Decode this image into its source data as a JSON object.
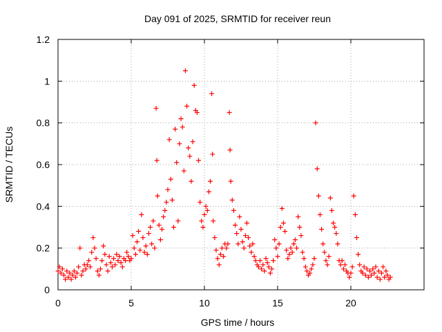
{
  "chart_data": {
    "type": "scatter",
    "title": "Day 091 of 2025, SRMTID for receiver reun",
    "xlabel": "GPS time / hours",
    "ylabel": "SRMTID / TECUs",
    "xlim": [
      0,
      25
    ],
    "ylim": [
      0,
      1.2
    ],
    "xticks": [
      0,
      5,
      10,
      15,
      20
    ],
    "xtick_labels": [
      "0",
      "5",
      "10",
      "15",
      "20"
    ],
    "yticks": [
      0,
      0.2,
      0.4,
      0.6,
      0.8,
      1.0,
      1.2
    ],
    "ytick_labels": [
      "0",
      "0.2",
      "0.4",
      "0.6",
      "0.8",
      "1",
      "1.2"
    ],
    "grid": true,
    "marker": "+",
    "series": [
      {
        "name": "SRMTID",
        "color": "#ff0000",
        "points": [
          [
            0.0,
            0.09
          ],
          [
            0.1,
            0.11
          ],
          [
            0.2,
            0.08
          ],
          [
            0.3,
            0.1
          ],
          [
            0.4,
            0.07
          ],
          [
            0.5,
            0.05
          ],
          [
            0.6,
            0.09
          ],
          [
            0.7,
            0.06
          ],
          [
            0.8,
            0.08
          ],
          [
            0.9,
            0.05
          ],
          [
            1.0,
            0.07
          ],
          [
            1.1,
            0.09
          ],
          [
            1.2,
            0.06
          ],
          [
            1.3,
            0.08
          ],
          [
            1.4,
            0.11
          ],
          [
            1.5,
            0.2
          ],
          [
            1.6,
            0.07
          ],
          [
            1.7,
            0.09
          ],
          [
            1.8,
            0.12
          ],
          [
            1.9,
            0.1
          ],
          [
            2.0,
            0.12
          ],
          [
            2.1,
            0.14
          ],
          [
            2.2,
            0.11
          ],
          [
            2.3,
            0.18
          ],
          [
            2.4,
            0.25
          ],
          [
            2.5,
            0.2
          ],
          [
            2.6,
            0.15
          ],
          [
            2.7,
            0.09
          ],
          [
            2.8,
            0.07
          ],
          [
            2.9,
            0.1
          ],
          [
            3.0,
            0.14
          ],
          [
            3.1,
            0.21
          ],
          [
            3.2,
            0.17
          ],
          [
            3.3,
            0.12
          ],
          [
            3.4,
            0.09
          ],
          [
            3.5,
            0.16
          ],
          [
            3.6,
            0.13
          ],
          [
            3.7,
            0.11
          ],
          [
            3.8,
            0.15
          ],
          [
            3.9,
            0.12
          ],
          [
            4.0,
            0.17
          ],
          [
            4.1,
            0.14
          ],
          [
            4.2,
            0.16
          ],
          [
            4.3,
            0.13
          ],
          [
            4.4,
            0.11
          ],
          [
            4.5,
            0.15
          ],
          [
            4.6,
            0.14
          ],
          [
            4.7,
            0.18
          ],
          [
            4.8,
            0.16
          ],
          [
            4.9,
            0.14
          ],
          [
            5.0,
            0.15
          ],
          [
            5.1,
            0.26
          ],
          [
            5.2,
            0.2
          ],
          [
            5.3,
            0.17
          ],
          [
            5.4,
            0.23
          ],
          [
            5.5,
            0.28
          ],
          [
            5.6,
            0.19
          ],
          [
            5.7,
            0.36
          ],
          [
            5.8,
            0.25
          ],
          [
            5.9,
            0.18
          ],
          [
            6.0,
            0.21
          ],
          [
            6.1,
            0.17
          ],
          [
            6.2,
            0.27
          ],
          [
            6.3,
            0.3
          ],
          [
            6.4,
            0.22
          ],
          [
            6.5,
            0.33
          ],
          [
            6.6,
            0.2
          ],
          [
            6.7,
            0.87
          ],
          [
            6.75,
            0.62
          ],
          [
            6.8,
            0.45
          ],
          [
            6.9,
            0.31
          ],
          [
            7.0,
            0.24
          ],
          [
            7.1,
            0.29
          ],
          [
            7.2,
            0.35
          ],
          [
            7.3,
            0.38
          ],
          [
            7.4,
            0.42
          ],
          [
            7.5,
            0.48
          ],
          [
            7.6,
            0.72
          ],
          [
            7.7,
            0.53
          ],
          [
            7.8,
            0.43
          ],
          [
            7.9,
            0.3
          ],
          [
            8.0,
            0.77
          ],
          [
            8.1,
            0.61
          ],
          [
            8.2,
            0.33
          ],
          [
            8.3,
            0.7
          ],
          [
            8.4,
            0.82
          ],
          [
            8.5,
            0.78
          ],
          [
            8.6,
            0.57
          ],
          [
            8.7,
            1.05
          ],
          [
            8.8,
            0.88
          ],
          [
            8.9,
            0.68
          ],
          [
            9.0,
            0.64
          ],
          [
            9.1,
            0.52
          ],
          [
            9.2,
            0.71
          ],
          [
            9.3,
            0.98
          ],
          [
            9.4,
            0.86
          ],
          [
            9.5,
            0.85
          ],
          [
            9.6,
            0.62
          ],
          [
            9.7,
            0.42
          ],
          [
            9.8,
            0.33
          ],
          [
            9.9,
            0.3
          ],
          [
            10.0,
            0.36
          ],
          [
            10.1,
            0.4
          ],
          [
            10.2,
            0.38
          ],
          [
            10.3,
            0.47
          ],
          [
            10.4,
            0.52
          ],
          [
            10.5,
            0.94
          ],
          [
            10.55,
            0.65
          ],
          [
            10.6,
            0.33
          ],
          [
            10.7,
            0.25
          ],
          [
            10.8,
            0.19
          ],
          [
            10.9,
            0.15
          ],
          [
            11.0,
            0.12
          ],
          [
            11.1,
            0.17
          ],
          [
            11.2,
            0.2
          ],
          [
            11.3,
            0.16
          ],
          [
            11.4,
            0.22
          ],
          [
            11.5,
            0.2
          ],
          [
            11.6,
            0.22
          ],
          [
            11.7,
            0.85
          ],
          [
            11.75,
            0.67
          ],
          [
            11.8,
            0.52
          ],
          [
            11.9,
            0.43
          ],
          [
            12.0,
            0.38
          ],
          [
            12.1,
            0.31
          ],
          [
            12.2,
            0.27
          ],
          [
            12.3,
            0.22
          ],
          [
            12.4,
            0.35
          ],
          [
            12.5,
            0.29
          ],
          [
            12.6,
            0.23
          ],
          [
            12.7,
            0.2
          ],
          [
            12.8,
            0.26
          ],
          [
            12.9,
            0.32
          ],
          [
            13.0,
            0.25
          ],
          [
            13.1,
            0.21
          ],
          [
            13.2,
            0.18
          ],
          [
            13.3,
            0.22
          ],
          [
            13.4,
            0.16
          ],
          [
            13.5,
            0.14
          ],
          [
            13.6,
            0.12
          ],
          [
            13.7,
            0.11
          ],
          [
            13.8,
            0.14
          ],
          [
            13.9,
            0.1
          ],
          [
            14.0,
            0.12
          ],
          [
            14.1,
            0.09
          ],
          [
            14.2,
            0.15
          ],
          [
            14.3,
            0.13
          ],
          [
            14.4,
            0.11
          ],
          [
            14.5,
            0.08
          ],
          [
            14.6,
            0.1
          ],
          [
            14.7,
            0.14
          ],
          [
            14.8,
            0.24
          ],
          [
            14.9,
            0.2
          ],
          [
            15.0,
            0.16
          ],
          [
            15.1,
            0.22
          ],
          [
            15.2,
            0.3
          ],
          [
            15.3,
            0.39
          ],
          [
            15.4,
            0.32
          ],
          [
            15.5,
            0.28
          ],
          [
            15.6,
            0.19
          ],
          [
            15.7,
            0.15
          ],
          [
            15.8,
            0.17
          ],
          [
            15.9,
            0.2
          ],
          [
            16.0,
            0.18
          ],
          [
            16.1,
            0.22
          ],
          [
            16.2,
            0.24
          ],
          [
            16.3,
            0.2
          ],
          [
            16.4,
            0.35
          ],
          [
            16.5,
            0.3
          ],
          [
            16.6,
            0.26
          ],
          [
            16.7,
            0.18
          ],
          [
            16.8,
            0.15
          ],
          [
            16.9,
            0.11
          ],
          [
            17.0,
            0.09
          ],
          [
            17.1,
            0.07
          ],
          [
            17.2,
            0.08
          ],
          [
            17.3,
            0.1
          ],
          [
            17.4,
            0.12
          ],
          [
            17.5,
            0.15
          ],
          [
            17.6,
            0.8
          ],
          [
            17.7,
            0.58
          ],
          [
            17.8,
            0.45
          ],
          [
            17.9,
            0.36
          ],
          [
            18.0,
            0.29
          ],
          [
            18.1,
            0.22
          ],
          [
            18.2,
            0.18
          ],
          [
            18.3,
            0.14
          ],
          [
            18.4,
            0.12
          ],
          [
            18.5,
            0.16
          ],
          [
            18.6,
            0.44
          ],
          [
            18.7,
            0.38
          ],
          [
            18.8,
            0.32
          ],
          [
            18.9,
            0.3
          ],
          [
            19.0,
            0.27
          ],
          [
            19.1,
            0.22
          ],
          [
            19.2,
            0.14
          ],
          [
            19.3,
            0.12
          ],
          [
            19.4,
            0.14
          ],
          [
            19.5,
            0.1
          ],
          [
            19.6,
            0.12
          ],
          [
            19.7,
            0.09
          ],
          [
            19.8,
            0.08
          ],
          [
            19.9,
            0.06
          ],
          [
            20.0,
            0.08
          ],
          [
            20.1,
            0.11
          ],
          [
            20.2,
            0.45
          ],
          [
            20.3,
            0.36
          ],
          [
            20.4,
            0.25
          ],
          [
            20.5,
            0.17
          ],
          [
            20.6,
            0.12
          ],
          [
            20.7,
            0.09
          ],
          [
            20.8,
            0.08
          ],
          [
            20.9,
            0.11
          ],
          [
            21.0,
            0.07
          ],
          [
            21.1,
            0.1
          ],
          [
            21.2,
            0.06
          ],
          [
            21.3,
            0.09
          ],
          [
            21.4,
            0.07
          ],
          [
            21.5,
            0.1
          ],
          [
            21.6,
            0.08
          ],
          [
            21.7,
            0.11
          ],
          [
            21.8,
            0.06
          ],
          [
            21.9,
            0.09
          ],
          [
            22.0,
            0.05
          ],
          [
            22.1,
            0.08
          ],
          [
            22.2,
            0.11
          ],
          [
            22.3,
            0.06
          ],
          [
            22.4,
            0.09
          ],
          [
            22.5,
            0.07
          ],
          [
            22.6,
            0.05
          ],
          [
            22.7,
            0.06
          ]
        ]
      }
    ]
  }
}
